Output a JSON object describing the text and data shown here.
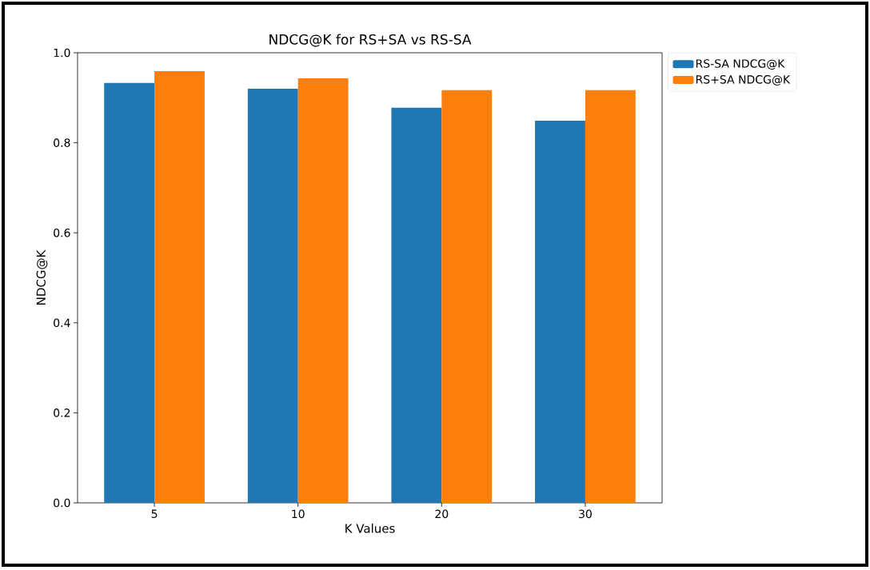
{
  "chart_data": {
    "type": "bar",
    "title": "NDCG@K for RS+SA vs RS-SA",
    "xlabel": "K Values",
    "ylabel": "NDCG@K",
    "categories": [
      "5",
      "10",
      "20",
      "30"
    ],
    "series": [
      {
        "name": "RS-SA NDCG@K",
        "color": "#1f77b4",
        "values": [
          0.933,
          0.92,
          0.878,
          0.849
        ]
      },
      {
        "name": "RS+SA NDCG@K",
        "color": "#ff7f0e",
        "values": [
          0.959,
          0.943,
          0.917,
          0.917
        ]
      }
    ],
    "ylim": [
      0,
      1.0
    ],
    "yticks": [
      {
        "value": 0,
        "label": "0.0"
      },
      0.2,
      0.4,
      0.6,
      0.8,
      {
        "value": 1,
        "label": "1.0"
      }
    ],
    "grid": false,
    "legend": "top right"
  }
}
